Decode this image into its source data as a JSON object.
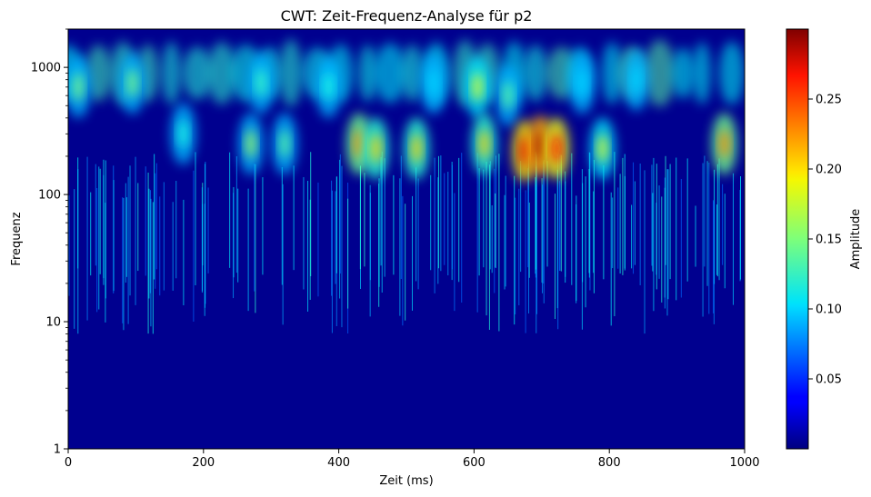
{
  "chart_data": {
    "type": "heatmap",
    "title": "CWT: Zeit-Frequenz-Analyse für p2",
    "xlabel": "Zeit (ms)",
    "ylabel": "Frequenz",
    "xlim": [
      0,
      1000
    ],
    "ylim": [
      1,
      2000
    ],
    "yscale": "log",
    "x_ticks": [
      0,
      200,
      400,
      600,
      800,
      1000
    ],
    "x_tick_labels": [
      "0",
      "200",
      "400",
      "600",
      "800",
      "1000"
    ],
    "y_ticks": [
      1,
      10,
      100,
      1000
    ],
    "y_tick_labels": [
      "1",
      "10",
      "100",
      "1000"
    ],
    "colormap": "jet",
    "colorbar": {
      "label": "Amplitude",
      "range": [
        0.0,
        0.3
      ],
      "ticks": [
        0.05,
        0.1,
        0.15,
        0.2,
        0.25
      ],
      "tick_labels": [
        "0.05",
        "0.10",
        "0.15",
        "0.20",
        "0.25"
      ]
    },
    "high_energy_events": [
      {
        "time": 15,
        "frequency": 700,
        "amplitude": 0.15
      },
      {
        "time": 95,
        "frequency": 750,
        "amplitude": 0.15
      },
      {
        "time": 170,
        "frequency": 300,
        "amplitude": 0.12
      },
      {
        "time": 270,
        "frequency": 250,
        "amplitude": 0.16
      },
      {
        "time": 285,
        "frequency": 750,
        "amplitude": 0.13
      },
      {
        "time": 320,
        "frequency": 250,
        "amplitude": 0.14
      },
      {
        "time": 385,
        "frequency": 700,
        "amplitude": 0.12
      },
      {
        "time": 430,
        "frequency": 250,
        "amplitude": 0.22
      },
      {
        "time": 455,
        "frequency": 230,
        "amplitude": 0.2
      },
      {
        "time": 515,
        "frequency": 230,
        "amplitude": 0.2
      },
      {
        "time": 540,
        "frequency": 750,
        "amplitude": 0.1
      },
      {
        "time": 605,
        "frequency": 700,
        "amplitude": 0.18
      },
      {
        "time": 615,
        "frequency": 250,
        "amplitude": 0.2
      },
      {
        "time": 650,
        "frequency": 600,
        "amplitude": 0.14
      },
      {
        "time": 675,
        "frequency": 220,
        "amplitude": 0.27
      },
      {
        "time": 698,
        "frequency": 240,
        "amplitude": 0.29
      },
      {
        "time": 722,
        "frequency": 230,
        "amplitude": 0.26
      },
      {
        "time": 760,
        "frequency": 750,
        "amplitude": 0.1
      },
      {
        "time": 790,
        "frequency": 230,
        "amplitude": 0.18
      },
      {
        "time": 840,
        "frequency": 800,
        "amplitude": 0.1
      },
      {
        "time": 970,
        "frequency": 250,
        "amplitude": 0.22
      }
    ]
  }
}
